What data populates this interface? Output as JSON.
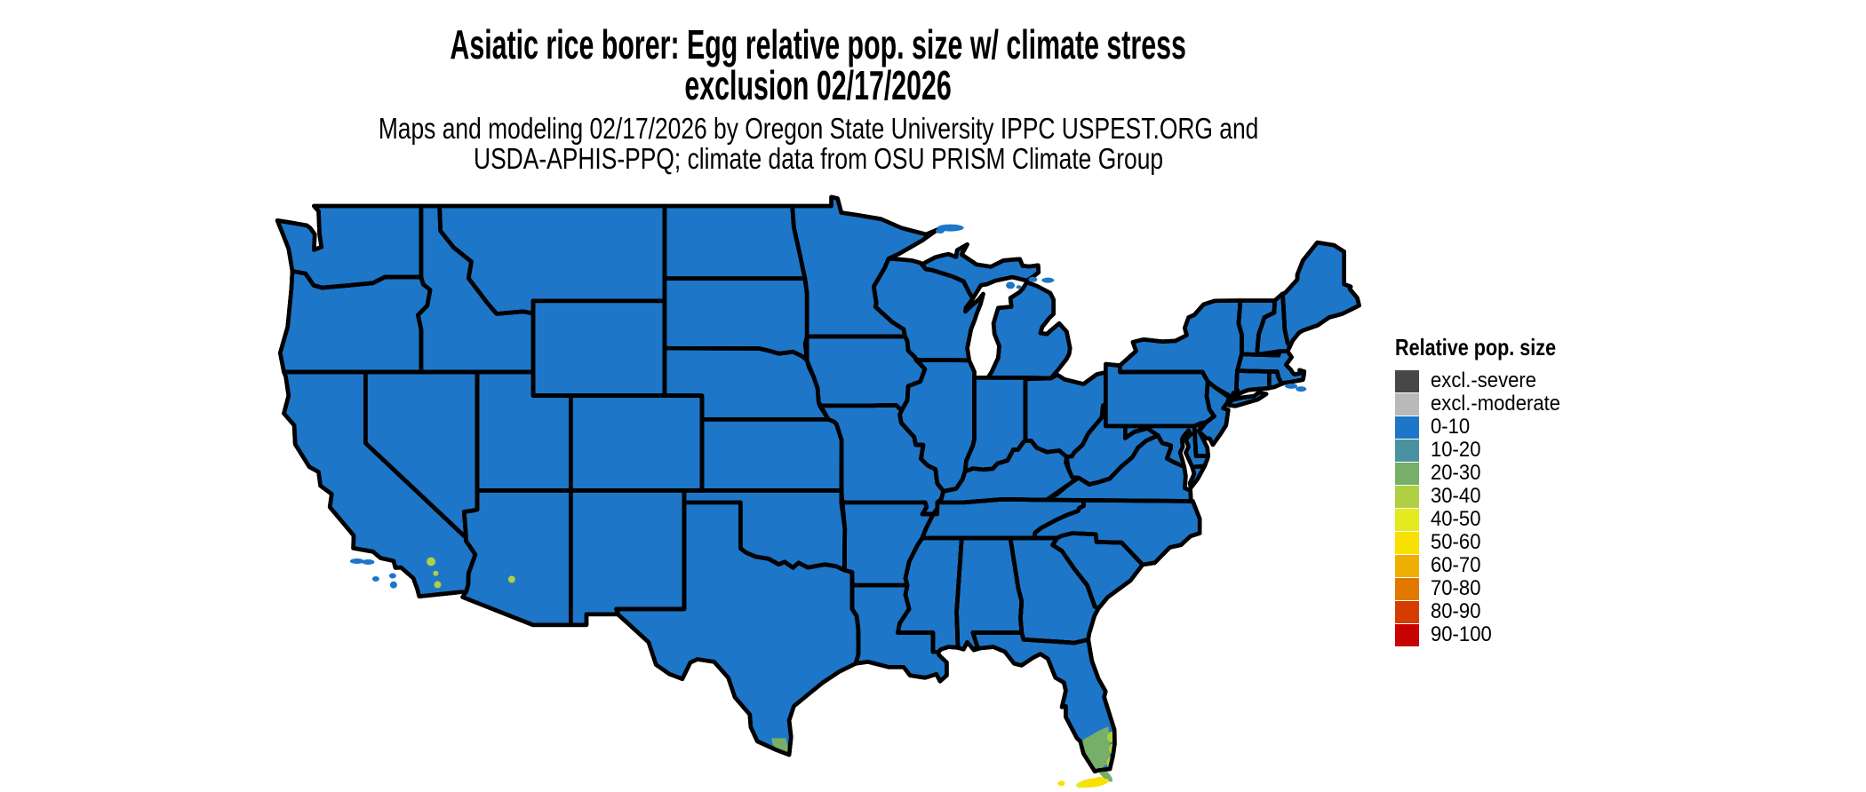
{
  "header": {
    "title_line1": "Asiatic rice borer: Egg relative pop. size w/ climate stress",
    "title_line2": "exclusion 02/17/2026",
    "subtitle_line1": "Maps and modeling 02/17/2026 by Oregon State University IPPC USPEST.ORG and",
    "subtitle_line2": "USDA-APHIS-PPQ; climate data from OSU PRISM Climate Group"
  },
  "legend": {
    "title": "Relative pop. size",
    "entries": [
      {
        "label": "excl.-severe",
        "color": "#474747"
      },
      {
        "label": "excl.-moderate",
        "color": "#b9b9b9"
      },
      {
        "label": "0-10",
        "color": "#1d76c8"
      },
      {
        "label": "10-20",
        "color": "#4a92a0"
      },
      {
        "label": "20-30",
        "color": "#77ae68"
      },
      {
        "label": "30-40",
        "color": "#afd042"
      },
      {
        "label": "40-50",
        "color": "#e3ea1e"
      },
      {
        "label": "50-60",
        "color": "#f8e000"
      },
      {
        "label": "60-70",
        "color": "#eeae04"
      },
      {
        "label": "70-80",
        "color": "#e27800"
      },
      {
        "label": "80-90",
        "color": "#d63b00"
      },
      {
        "label": "90-100",
        "color": "#c80200"
      }
    ]
  },
  "map": {
    "background": "#ffffff",
    "border_color": "#000000",
    "base_class": "0-10",
    "regions": [
      {
        "name": "south-florida",
        "class": "20-30"
      },
      {
        "name": "south-florida-atlantic-fringe",
        "class": "30-40"
      },
      {
        "name": "florida-keys-upper",
        "class": "20-30"
      },
      {
        "name": "florida-keys",
        "class": "50-60"
      },
      {
        "name": "florida-keys-west-speck",
        "class": "40-50"
      },
      {
        "name": "south-texas-tip",
        "class": "20-30"
      },
      {
        "name": "southern-california-valleys",
        "class": "30-40"
      },
      {
        "name": "central-arizona",
        "class": "30-40"
      }
    ]
  }
}
